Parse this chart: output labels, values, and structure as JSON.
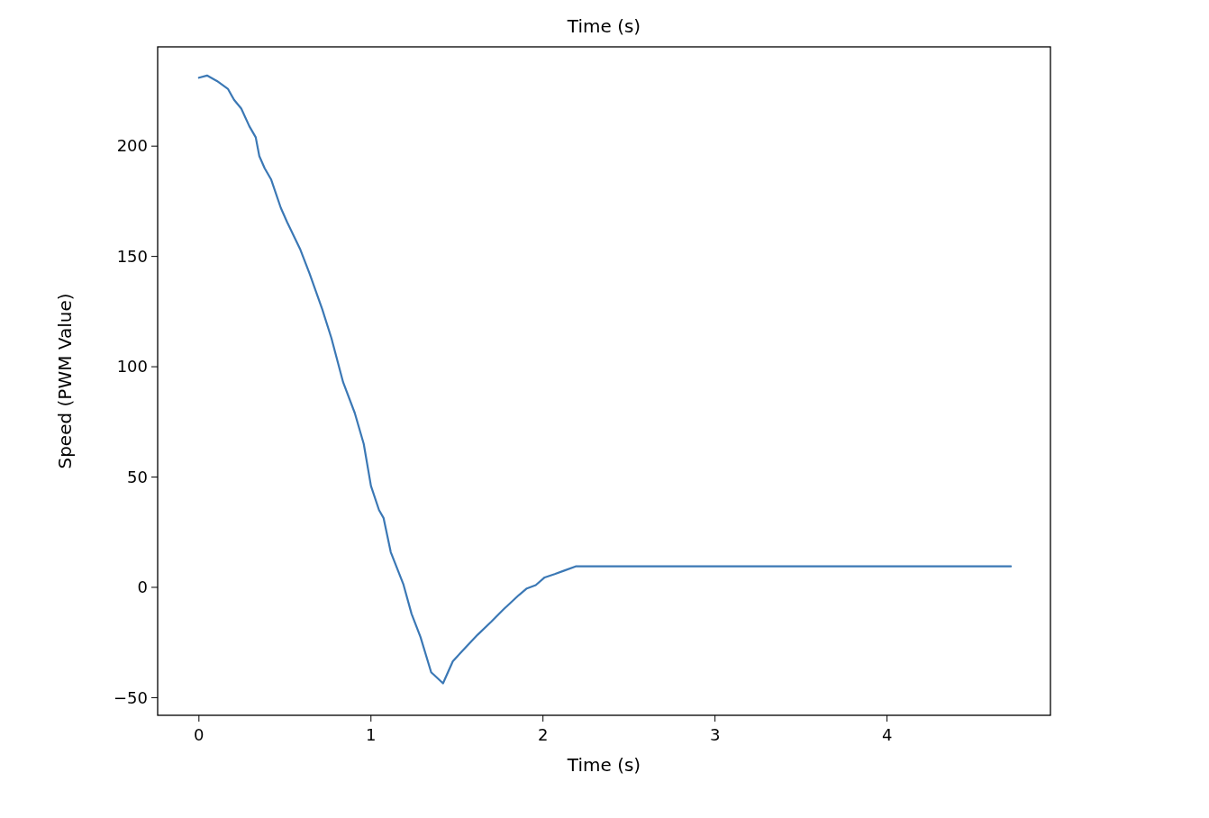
{
  "chart_data": {
    "type": "line",
    "title": "Time (s)",
    "xlabel": "Time (s)",
    "ylabel": "Speed (PWM Value)",
    "xlim": [
      -0.24,
      4.95
    ],
    "ylim": [
      -58,
      245
    ],
    "xticks": [
      0,
      1,
      2,
      3,
      4
    ],
    "yticks": [
      -50,
      0,
      50,
      100,
      150,
      200
    ],
    "grid": false,
    "series": [
      {
        "color": "#3b78b5",
        "line_style": "solid",
        "x": [
          0,
          0.047,
          0.105,
          0.168,
          0.204,
          0.246,
          0.293,
          0.33,
          0.351,
          0.382,
          0.419,
          0.476,
          0.513,
          0.59,
          0.644,
          0.717,
          0.77,
          0.838,
          0.906,
          0.958,
          1.0,
          1.047,
          1.073,
          1.115,
          1.188,
          1.236,
          1.288,
          1.35,
          1.419,
          1.476,
          1.529,
          1.62,
          1.7,
          1.77,
          1.86,
          1.906,
          1.958,
          2.01,
          2.068,
          2.12,
          2.19,
          4.72
        ],
        "values": [
          231,
          232,
          229.5,
          226,
          221,
          217,
          209,
          204,
          195.5,
          190,
          185,
          172,
          165.5,
          153,
          142,
          126,
          113,
          93,
          79,
          65,
          46,
          35,
          31.5,
          16,
          1.5,
          -12,
          -22.5,
          -38.5,
          -43.5,
          -33.5,
          -29,
          -21.5,
          -15.5,
          -10,
          -3.5,
          -0.5,
          1,
          4.5,
          6,
          7.5,
          9.5,
          9.5
        ]
      }
    ]
  }
}
